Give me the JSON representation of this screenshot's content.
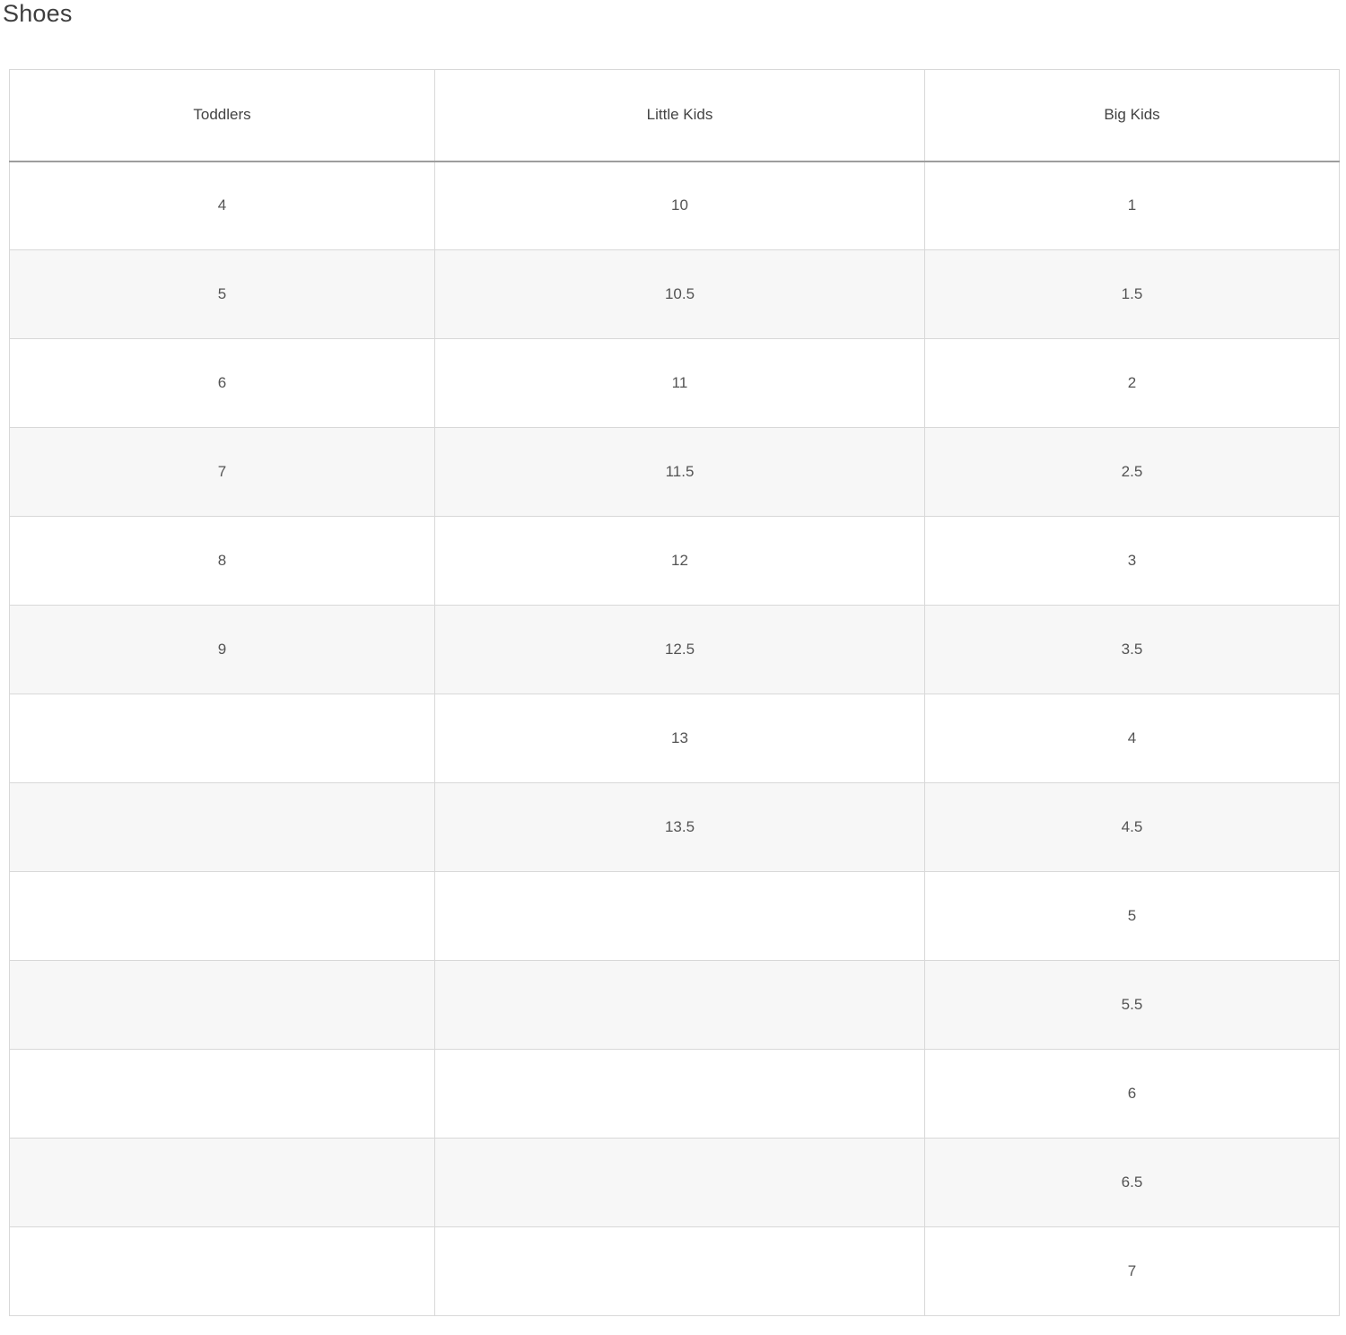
{
  "page": {
    "title": "Shoes"
  },
  "size_chart": {
    "columns": [
      "Toddlers",
      "Little Kids",
      "Big Kids"
    ],
    "rows": [
      [
        "4",
        "10",
        "1"
      ],
      [
        "5",
        "10.5",
        "1.5"
      ],
      [
        "6",
        "11",
        "2"
      ],
      [
        "7",
        "11.5",
        "2.5"
      ],
      [
        "8",
        "12",
        "3"
      ],
      [
        "9",
        "12.5",
        "3.5"
      ],
      [
        "",
        "13",
        "4"
      ],
      [
        "",
        "13.5",
        "4.5"
      ],
      [
        "",
        "",
        "5"
      ],
      [
        "",
        "",
        "5.5"
      ],
      [
        "",
        "",
        "6"
      ],
      [
        "",
        "",
        "6.5"
      ],
      [
        "",
        "",
        "7"
      ]
    ],
    "colors": {
      "border": "#d8d8d8",
      "header_rule": "#9d9d9d",
      "row_stripe": "#f7f7f7",
      "title_text": "#3e3e3e",
      "header_text": "#434343",
      "cell_text": "#545454",
      "background": "#ffffff"
    }
  }
}
